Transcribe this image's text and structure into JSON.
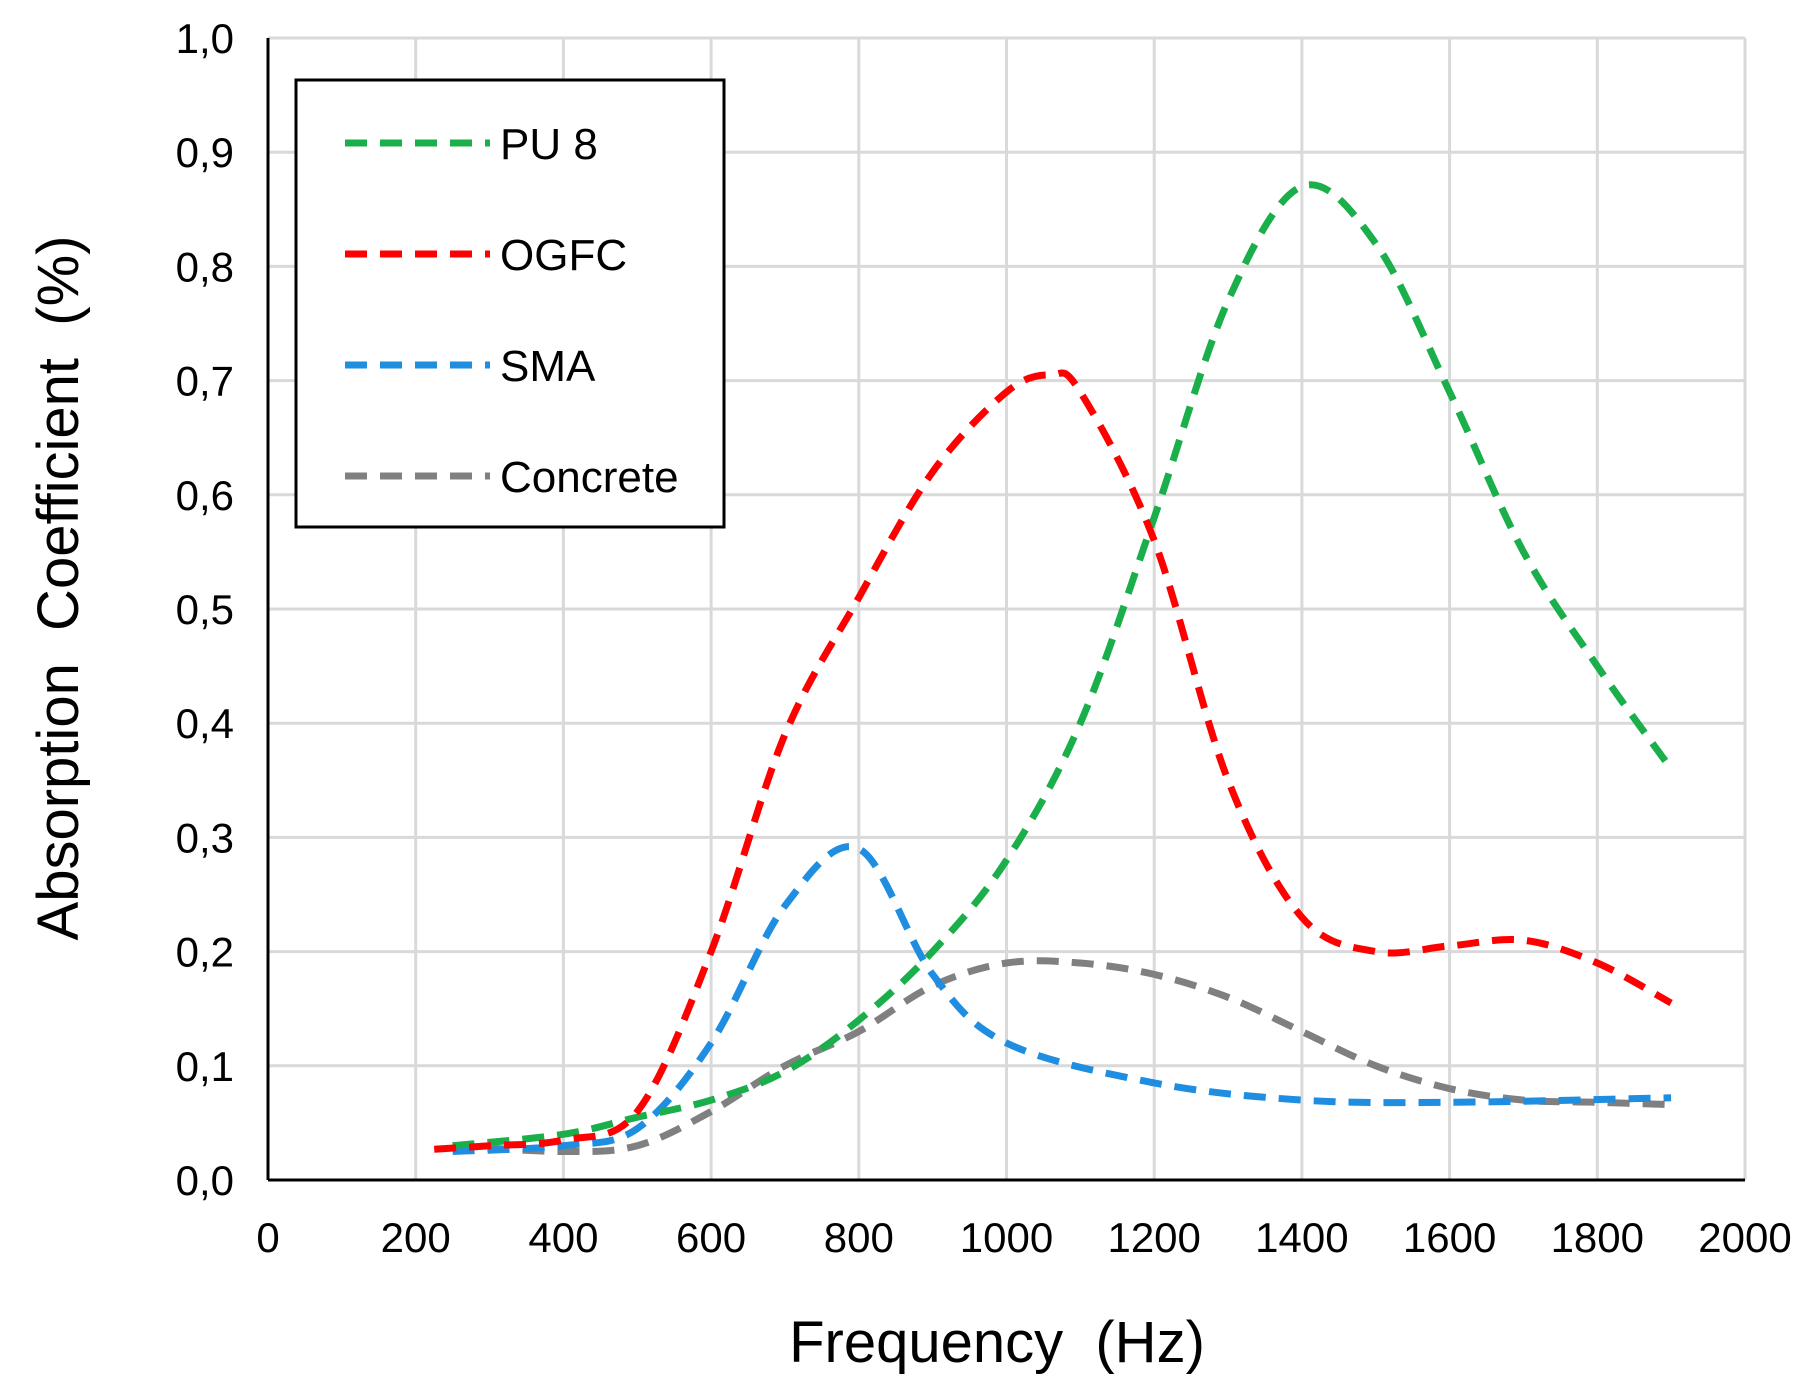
{
  "chart_data": {
    "type": "line",
    "title": "",
    "xlabel": "Frequency  (Hz)",
    "ylabel": "Absorption  Coefficient  (%)",
    "xlim": [
      0,
      2000
    ],
    "ylim": [
      0,
      1.0
    ],
    "xticks": [
      0,
      200,
      400,
      600,
      800,
      1000,
      1200,
      1400,
      1600,
      1800,
      2000
    ],
    "xtick_labels": [
      "0",
      "200",
      "400",
      "600",
      "800",
      "1000",
      "1200",
      "1400",
      "1600",
      "1800",
      "2000"
    ],
    "yticks": [
      0,
      0.1,
      0.2,
      0.3,
      0.4,
      0.5,
      0.6,
      0.7,
      0.8,
      0.9,
      1.0
    ],
    "ytick_labels": [
      "0,0",
      "0,1",
      "0,2",
      "0,3",
      "0,4",
      "0,5",
      "0,6",
      "0,7",
      "0,8",
      "0,9",
      "1,0"
    ],
    "grid": true,
    "legend_position": "top-left",
    "series": [
      {
        "name": "PU 8",
        "color": "#1aaf4b",
        "x": [
          250,
          400,
          500,
          600,
          700,
          800,
          900,
          1000,
          1100,
          1200,
          1300,
          1400,
          1500,
          1600,
          1700,
          1800,
          1900
        ],
        "y": [
          0.03,
          0.04,
          0.055,
          0.07,
          0.095,
          0.14,
          0.2,
          0.28,
          0.4,
          0.58,
          0.77,
          0.87,
          0.82,
          0.69,
          0.55,
          0.45,
          0.36
        ]
      },
      {
        "name": "OGFC",
        "color": "#ff0000",
        "x": [
          225,
          300,
          400,
          500,
          600,
          700,
          800,
          900,
          1000,
          1060,
          1100,
          1200,
          1300,
          1400,
          1500,
          1600,
          1700,
          1800,
          1900
        ],
        "y": [
          0.027,
          0.03,
          0.035,
          0.06,
          0.2,
          0.39,
          0.51,
          0.62,
          0.69,
          0.705,
          0.69,
          0.56,
          0.35,
          0.23,
          0.2,
          0.205,
          0.21,
          0.19,
          0.155
        ]
      },
      {
        "name": "SMA",
        "color": "#1f8de0",
        "x": [
          250,
          400,
          500,
          600,
          700,
          800,
          900,
          1000,
          1200,
          1400,
          1600,
          1900
        ],
        "y": [
          0.025,
          0.03,
          0.045,
          0.12,
          0.24,
          0.29,
          0.18,
          0.12,
          0.085,
          0.07,
          0.068,
          0.072
        ]
      },
      {
        "name": "Concrete",
        "color": "#808080",
        "x": [
          250,
          400,
          500,
          600,
          700,
          800,
          900,
          1000,
          1100,
          1200,
          1300,
          1400,
          1500,
          1600,
          1700,
          1800,
          1900
        ],
        "y": [
          0.03,
          0.025,
          0.03,
          0.06,
          0.1,
          0.13,
          0.17,
          0.19,
          0.19,
          0.18,
          0.16,
          0.13,
          0.1,
          0.08,
          0.07,
          0.068,
          0.066
        ]
      }
    ]
  }
}
